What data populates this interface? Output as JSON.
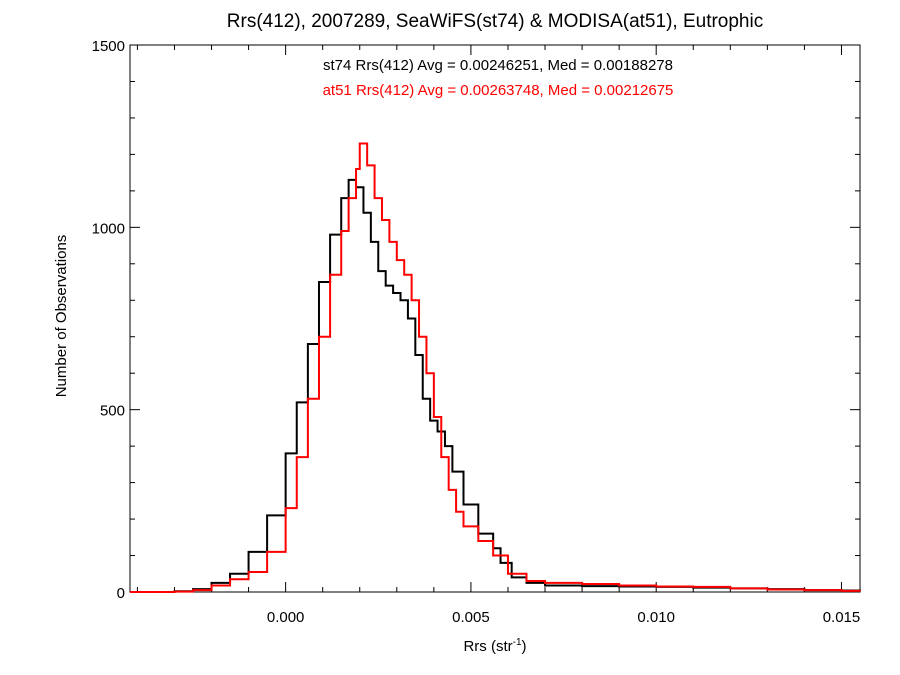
{
  "chart_data": {
    "type": "line",
    "title": "Rrs(412), 2007289, SeaWiFS(st74) & MODISA(at51), Eutrophic",
    "xlabel": "Rrs (str",
    "xlabel_superscript": "-1",
    "xlabel_close": ")",
    "ylabel": "Number of Observations",
    "xlim": [
      -0.0042,
      0.0155
    ],
    "ylim": [
      0,
      1500
    ],
    "xticks": [
      {
        "value": 0.0,
        "label": "0.000"
      },
      {
        "value": 0.005,
        "label": "0.005"
      },
      {
        "value": 0.01,
        "label": "0.010"
      },
      {
        "value": 0.015,
        "label": "0.015"
      }
    ],
    "yticks": [
      {
        "value": 0,
        "label": "0"
      },
      {
        "value": 500,
        "label": "500"
      },
      {
        "value": 1000,
        "label": "1000"
      },
      {
        "value": 1500,
        "label": "1500"
      }
    ],
    "grid": false,
    "series": [
      {
        "name": "st74",
        "color": "#000000",
        "stats_text": "st74 Rrs(412) Avg = 0.00246251, Med = 0.00188278",
        "points": [
          [
            -0.0042,
            0
          ],
          [
            -0.003,
            2
          ],
          [
            -0.0025,
            8
          ],
          [
            -0.002,
            25
          ],
          [
            -0.0015,
            50
          ],
          [
            -0.001,
            110
          ],
          [
            -0.0005,
            210
          ],
          [
            0.0,
            380
          ],
          [
            0.0003,
            520
          ],
          [
            0.0006,
            680
          ],
          [
            0.0009,
            850
          ],
          [
            0.0012,
            980
          ],
          [
            0.0015,
            1080
          ],
          [
            0.0017,
            1130
          ],
          [
            0.0019,
            1110
          ],
          [
            0.0021,
            1040
          ],
          [
            0.0023,
            960
          ],
          [
            0.0025,
            880
          ],
          [
            0.0027,
            840
          ],
          [
            0.0029,
            820
          ],
          [
            0.0031,
            800
          ],
          [
            0.0033,
            750
          ],
          [
            0.0035,
            650
          ],
          [
            0.0037,
            530
          ],
          [
            0.0039,
            470
          ],
          [
            0.0041,
            440
          ],
          [
            0.0043,
            400
          ],
          [
            0.0045,
            330
          ],
          [
            0.0048,
            240
          ],
          [
            0.0052,
            160
          ],
          [
            0.0056,
            120
          ],
          [
            0.0058,
            80
          ],
          [
            0.0061,
            40
          ],
          [
            0.0065,
            25
          ],
          [
            0.007,
            18
          ],
          [
            0.008,
            16
          ],
          [
            0.009,
            15
          ],
          [
            0.01,
            14
          ],
          [
            0.011,
            12
          ],
          [
            0.012,
            10
          ],
          [
            0.013,
            8
          ],
          [
            0.014,
            5
          ],
          [
            0.015,
            4
          ],
          [
            0.0155,
            3
          ]
        ]
      },
      {
        "name": "at51",
        "color": "#ff0000",
        "stats_text": "at51 Rrs(412) Avg = 0.00263748, Med = 0.00212675",
        "points": [
          [
            -0.0042,
            0
          ],
          [
            -0.003,
            1
          ],
          [
            -0.0025,
            5
          ],
          [
            -0.002,
            18
          ],
          [
            -0.0015,
            35
          ],
          [
            -0.001,
            55
          ],
          [
            -0.0005,
            110
          ],
          [
            0.0,
            230
          ],
          [
            0.0003,
            370
          ],
          [
            0.0006,
            530
          ],
          [
            0.0009,
            700
          ],
          [
            0.0012,
            870
          ],
          [
            0.0015,
            990
          ],
          [
            0.0017,
            1080
          ],
          [
            0.0019,
            1160
          ],
          [
            0.002,
            1230
          ],
          [
            0.0022,
            1170
          ],
          [
            0.0024,
            1080
          ],
          [
            0.0026,
            1020
          ],
          [
            0.0028,
            960
          ],
          [
            0.003,
            910
          ],
          [
            0.0032,
            870
          ],
          [
            0.0034,
            800
          ],
          [
            0.0036,
            700
          ],
          [
            0.0038,
            600
          ],
          [
            0.004,
            480
          ],
          [
            0.0042,
            370
          ],
          [
            0.0044,
            280
          ],
          [
            0.0046,
            220
          ],
          [
            0.0048,
            180
          ],
          [
            0.0052,
            140
          ],
          [
            0.0056,
            100
          ],
          [
            0.006,
            50
          ],
          [
            0.0065,
            30
          ],
          [
            0.007,
            25
          ],
          [
            0.008,
            22
          ],
          [
            0.009,
            18
          ],
          [
            0.01,
            15
          ],
          [
            0.011,
            14
          ],
          [
            0.012,
            10
          ],
          [
            0.013,
            7
          ],
          [
            0.014,
            5
          ],
          [
            0.015,
            3
          ],
          [
            0.0155,
            2
          ]
        ]
      }
    ]
  }
}
